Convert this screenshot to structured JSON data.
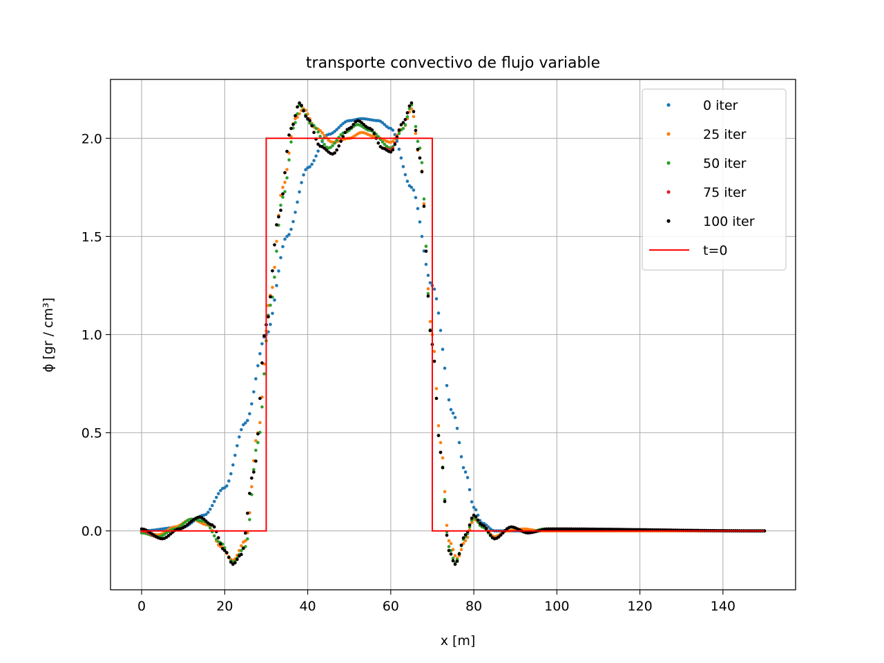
{
  "chart_data": {
    "type": "scatter",
    "title": "transporte convectivo de flujo variable",
    "xlabel": "x [m]",
    "ylabel": "ϕ [gr / cm³]",
    "xlim": [
      -7.5,
      157.5
    ],
    "ylim": [
      -0.3,
      2.3
    ],
    "xticks": [
      0,
      20,
      40,
      60,
      80,
      100,
      120,
      140
    ],
    "xtick_labels": [
      "0",
      "20",
      "40",
      "60",
      "80",
      "100",
      "120",
      "140"
    ],
    "yticks": [
      0.0,
      0.5,
      1.0,
      1.5,
      2.0
    ],
    "ytick_labels": [
      "0.0",
      "0.5",
      "1.0",
      "1.5",
      "2.0"
    ],
    "grid": true,
    "legend_position": "top-right",
    "x_range": [
      0,
      150
    ],
    "sample_step": 0.5,
    "series": [
      {
        "name": "0 iter",
        "style": "dots",
        "color": "#1f77b4",
        "points": [
          [
            0,
            0.0
          ],
          [
            10,
            0.02
          ],
          [
            15,
            0.08
          ],
          [
            20,
            0.22
          ],
          [
            25,
            0.55
          ],
          [
            30,
            1.0
          ],
          [
            35,
            1.5
          ],
          [
            40,
            1.85
          ],
          [
            45,
            2.02
          ],
          [
            50,
            2.09
          ],
          [
            53,
            2.1
          ],
          [
            57,
            2.09
          ],
          [
            60,
            2.05
          ],
          [
            65,
            1.75
          ],
          [
            70,
            1.25
          ],
          [
            75,
            0.6
          ],
          [
            78,
            0.3
          ],
          [
            80,
            0.12
          ],
          [
            82,
            0.04
          ],
          [
            85,
            0.0
          ],
          [
            150,
            0.0
          ]
        ]
      },
      {
        "name": "25 iter",
        "style": "dots",
        "color": "#ff7f0e",
        "points": [
          [
            0,
            -0.01
          ],
          [
            4,
            -0.02
          ],
          [
            8,
            0.02
          ],
          [
            12,
            0.06
          ],
          [
            16,
            0.03
          ],
          [
            19,
            -0.08
          ],
          [
            22,
            -0.15
          ],
          [
            25,
            -0.05
          ],
          [
            28,
            0.5
          ],
          [
            31,
            1.2
          ],
          [
            34,
            1.75
          ],
          [
            37,
            2.1
          ],
          [
            39,
            2.15
          ],
          [
            42,
            2.05
          ],
          [
            46,
            1.98
          ],
          [
            50,
            2.0
          ],
          [
            53,
            2.03
          ],
          [
            56,
            2.01
          ],
          [
            60,
            1.98
          ],
          [
            63,
            2.05
          ],
          [
            65,
            2.15
          ],
          [
            67,
            1.9
          ],
          [
            70,
            1.0
          ],
          [
            72,
            0.45
          ],
          [
            74,
            -0.05
          ],
          [
            76,
            -0.14
          ],
          [
            78,
            -0.05
          ],
          [
            80,
            0.06
          ],
          [
            82,
            0.03
          ],
          [
            85,
            -0.03
          ],
          [
            88,
            0.0
          ],
          [
            92,
            0.01
          ],
          [
            96,
            0.0
          ],
          [
            150,
            0.0
          ]
        ]
      },
      {
        "name": "50 iter",
        "style": "dots",
        "color": "#2ca02c",
        "points": [
          [
            0,
            -0.01
          ],
          [
            4,
            -0.03
          ],
          [
            8,
            0.01
          ],
          [
            12,
            0.06
          ],
          [
            15,
            0.05
          ],
          [
            19,
            -0.06
          ],
          [
            22,
            -0.16
          ],
          [
            25,
            -0.08
          ],
          [
            28,
            0.45
          ],
          [
            31,
            1.15
          ],
          [
            34,
            1.7
          ],
          [
            37,
            2.08
          ],
          [
            38,
            2.17
          ],
          [
            41,
            2.07
          ],
          [
            45,
            1.95
          ],
          [
            49,
            2.03
          ],
          [
            52,
            2.07
          ],
          [
            55,
            2.04
          ],
          [
            60,
            1.95
          ],
          [
            63,
            2.05
          ],
          [
            65,
            2.17
          ],
          [
            67,
            1.95
          ],
          [
            70,
            0.95
          ],
          [
            72,
            0.4
          ],
          [
            74,
            -0.08
          ],
          [
            75.5,
            -0.16
          ],
          [
            78,
            -0.03
          ],
          [
            80,
            0.07
          ],
          [
            82,
            0.02
          ],
          [
            85,
            -0.04
          ],
          [
            89,
            0.02
          ],
          [
            93,
            -0.01
          ],
          [
            97,
            0.01
          ],
          [
            150,
            0.0
          ]
        ]
      },
      {
        "name": "75 iter",
        "style": "dots",
        "color": "#d62728",
        "points": [
          [
            0,
            0.0
          ],
          [
            5,
            -0.04
          ],
          [
            9,
            0.01
          ],
          [
            14,
            0.07
          ],
          [
            17,
            0.03
          ],
          [
            20,
            -0.1
          ],
          [
            22,
            -0.17
          ],
          [
            24,
            -0.12
          ],
          [
            27,
            0.3
          ],
          [
            30,
            1.05
          ],
          [
            33,
            1.6
          ],
          [
            36,
            2.05
          ],
          [
            38,
            2.18
          ],
          [
            40,
            2.1
          ],
          [
            43,
            1.96
          ],
          [
            46,
            1.92
          ],
          [
            50,
            2.05
          ],
          [
            52,
            2.09
          ],
          [
            55,
            2.05
          ],
          [
            58,
            1.95
          ],
          [
            60,
            1.94
          ],
          [
            63,
            2.08
          ],
          [
            65,
            2.18
          ],
          [
            67,
            1.9
          ],
          [
            70,
            0.95
          ],
          [
            72,
            0.4
          ],
          [
            74,
            -0.1
          ],
          [
            75.5,
            -0.17
          ],
          [
            78,
            -0.02
          ],
          [
            80,
            0.08
          ],
          [
            82,
            0.03
          ],
          [
            85,
            -0.04
          ],
          [
            89,
            0.02
          ],
          [
            93,
            -0.01
          ],
          [
            98,
            0.01
          ],
          [
            150,
            0.0
          ]
        ]
      },
      {
        "name": "100 iter",
        "style": "dots",
        "color": "#000000",
        "points": [
          [
            0,
            0.01
          ],
          [
            5,
            -0.04
          ],
          [
            9,
            0.01
          ],
          [
            14,
            0.07
          ],
          [
            17,
            0.03
          ],
          [
            20,
            -0.1
          ],
          [
            22,
            -0.17
          ],
          [
            24,
            -0.12
          ],
          [
            27,
            0.3
          ],
          [
            30,
            1.05
          ],
          [
            33,
            1.6
          ],
          [
            36,
            2.05
          ],
          [
            38,
            2.18
          ],
          [
            40,
            2.1
          ],
          [
            43,
            1.96
          ],
          [
            46,
            1.92
          ],
          [
            50,
            2.05
          ],
          [
            52,
            2.09
          ],
          [
            55,
            2.05
          ],
          [
            58,
            1.95
          ],
          [
            60,
            1.93
          ],
          [
            63,
            2.08
          ],
          [
            65,
            2.18
          ],
          [
            67,
            1.9
          ],
          [
            70,
            0.95
          ],
          [
            72,
            0.4
          ],
          [
            74,
            -0.1
          ],
          [
            75.5,
            -0.17
          ],
          [
            78,
            -0.02
          ],
          [
            80,
            0.08
          ],
          [
            82,
            0.03
          ],
          [
            85,
            -0.04
          ],
          [
            89,
            0.02
          ],
          [
            93,
            -0.01
          ],
          [
            98,
            0.01
          ],
          [
            150,
            0.0
          ]
        ]
      },
      {
        "name": "t=0",
        "style": "line",
        "color": "#ff0000",
        "points": [
          [
            0,
            0.0
          ],
          [
            30,
            0.0
          ],
          [
            30,
            2.0
          ],
          [
            70,
            2.0
          ],
          [
            70,
            0.0
          ],
          [
            150,
            0.0
          ]
        ]
      }
    ]
  }
}
